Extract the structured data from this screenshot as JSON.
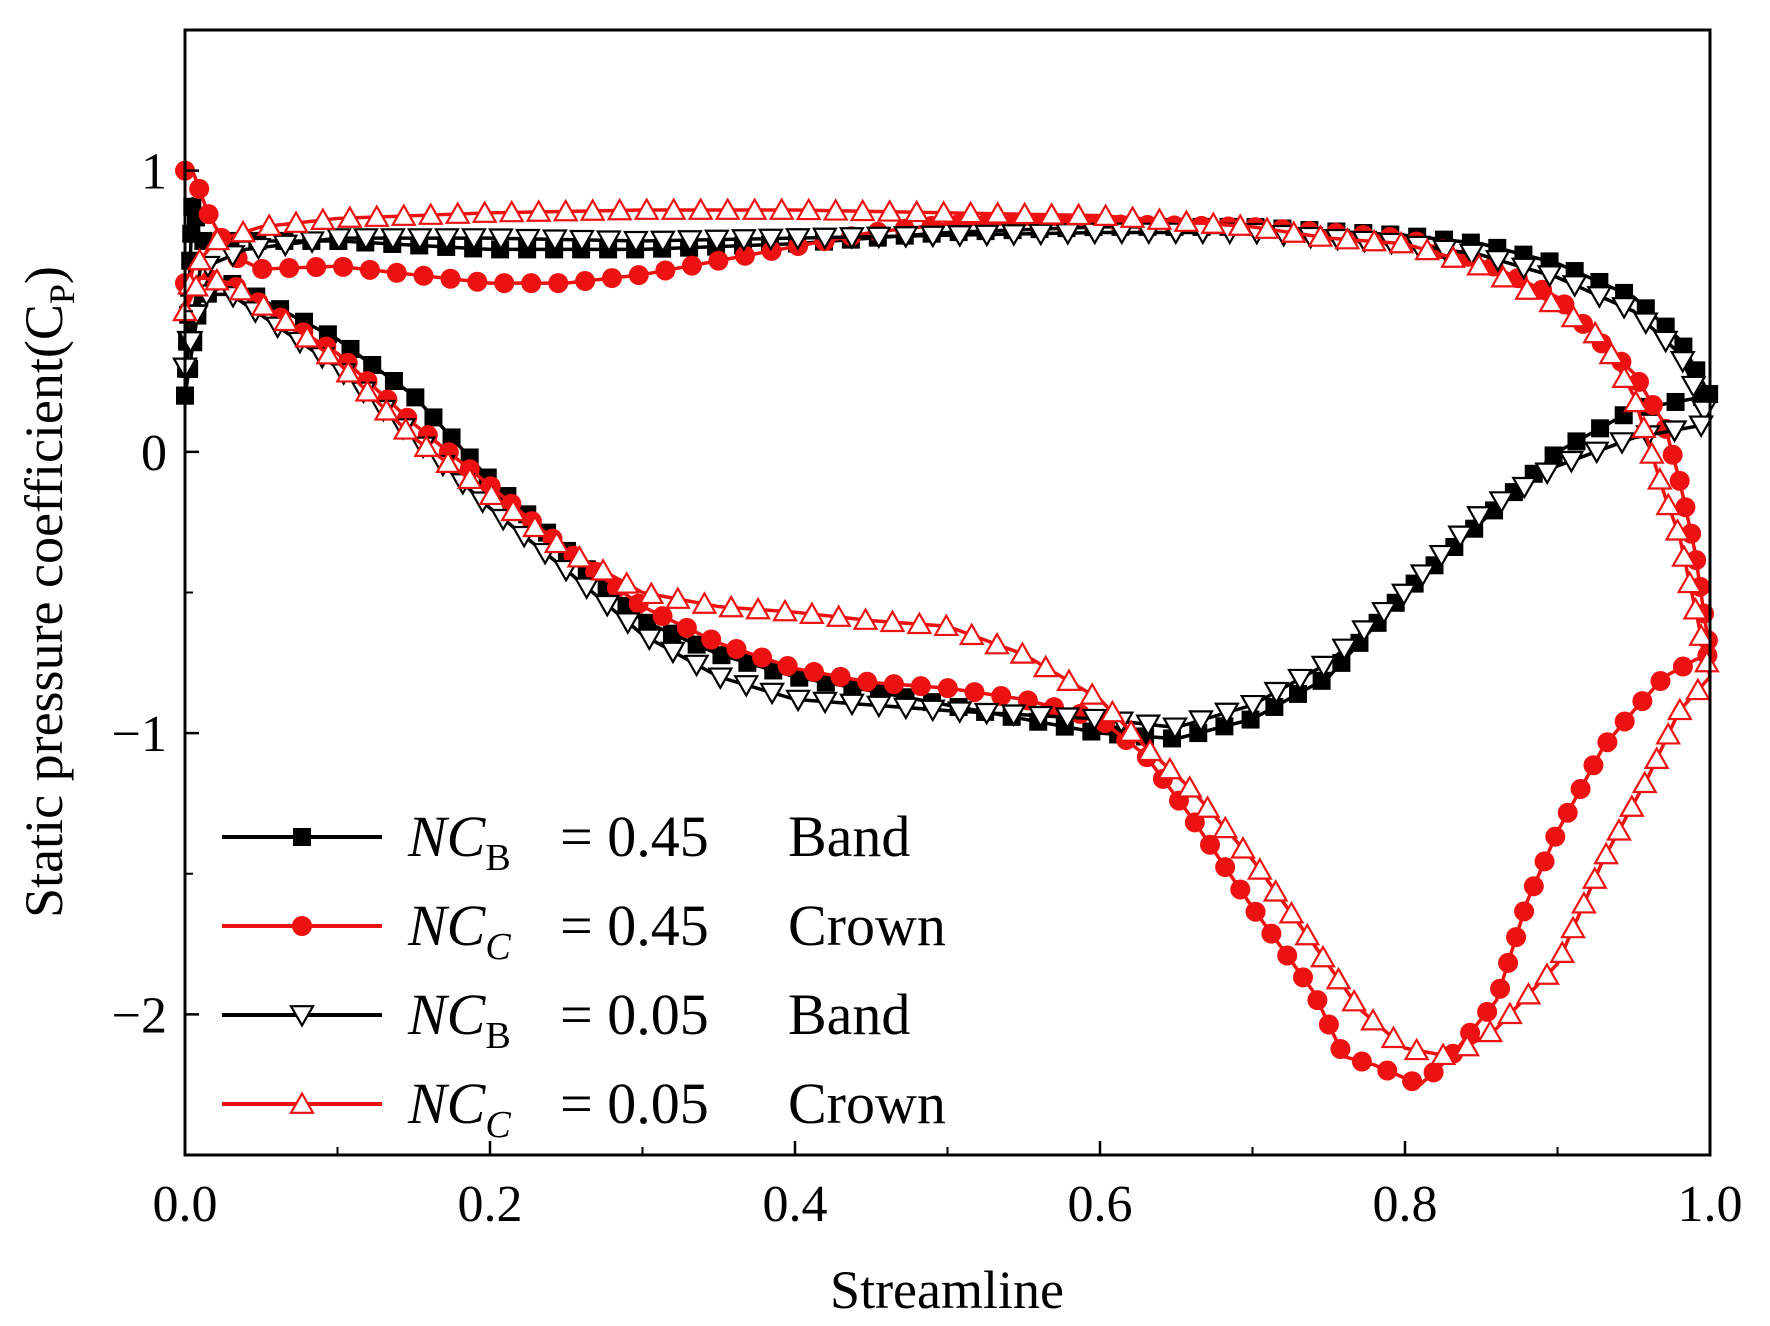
{
  "chart_data": {
    "type": "line",
    "xlabel": "Streamline",
    "ylabel": "Static pressure coefficient(C",
    "ylabel_sub": "P",
    "ylabel_close": ")",
    "xlim": [
      0.0,
      1.0
    ],
    "ylim": [
      -2.5,
      1.5
    ],
    "xticks": [
      0.0,
      0.2,
      0.4,
      0.6,
      0.8,
      1.0
    ],
    "xtick_labels": [
      "0.0",
      "0.2",
      "0.4",
      "0.6",
      "0.8",
      "1.0"
    ],
    "yticks": [
      -2,
      -1,
      0,
      1
    ],
    "ytick_labels": [
      "−2",
      "−1",
      "0",
      "1"
    ],
    "legend_position": "bottom-left",
    "series": [
      {
        "name": "NC_B = 0.45 Band",
        "label_italic": "NC",
        "label_sub": "B",
        "label_value": "= 0.45",
        "label_word": "Band",
        "color": "#000000",
        "marker": "square",
        "upper": [
          [
            0.0,
            0.2
          ],
          [
            0.005,
            0.9
          ],
          [
            0.01,
            0.75
          ],
          [
            0.05,
            0.75
          ],
          [
            0.1,
            0.75
          ],
          [
            0.2,
            0.72
          ],
          [
            0.3,
            0.72
          ],
          [
            0.4,
            0.74
          ],
          [
            0.5,
            0.78
          ],
          [
            0.6,
            0.8
          ],
          [
            0.7,
            0.8
          ],
          [
            0.8,
            0.77
          ],
          [
            0.85,
            0.74
          ],
          [
            0.9,
            0.67
          ],
          [
            0.95,
            0.55
          ],
          [
            0.98,
            0.4
          ],
          [
            1.0,
            0.2
          ]
        ],
        "lower": [
          [
            0.0,
            0.2
          ],
          [
            0.01,
            0.55
          ],
          [
            0.03,
            0.6
          ],
          [
            0.1,
            0.4
          ],
          [
            0.15,
            0.2
          ],
          [
            0.2,
            -0.1
          ],
          [
            0.25,
            -0.35
          ],
          [
            0.3,
            -0.6
          ],
          [
            0.35,
            -0.72
          ],
          [
            0.4,
            -0.8
          ],
          [
            0.5,
            -0.9
          ],
          [
            0.6,
            -1.0
          ],
          [
            0.65,
            -1.02
          ],
          [
            0.7,
            -0.95
          ],
          [
            0.75,
            -0.8
          ],
          [
            0.8,
            -0.5
          ],
          [
            0.85,
            -0.25
          ],
          [
            0.9,
            0.0
          ],
          [
            0.95,
            0.15
          ],
          [
            1.0,
            0.2
          ]
        ]
      },
      {
        "name": "NC_C = 0.45 Crown",
        "label_italic": "NC",
        "label_sub": "C",
        "label_value": "= 0.45",
        "label_word": "Crown",
        "color": "#ee1111",
        "marker": "circle",
        "upper": [
          [
            0.0,
            1.0
          ],
          [
            0.005,
            1.0
          ],
          [
            0.015,
            0.85
          ],
          [
            0.03,
            0.7
          ],
          [
            0.05,
            0.65
          ],
          [
            0.1,
            0.66
          ],
          [
            0.15,
            0.63
          ],
          [
            0.2,
            0.6
          ],
          [
            0.25,
            0.6
          ],
          [
            0.3,
            0.63
          ],
          [
            0.35,
            0.68
          ],
          [
            0.4,
            0.73
          ],
          [
            0.45,
            0.78
          ],
          [
            0.5,
            0.81
          ],
          [
            0.6,
            0.81
          ],
          [
            0.7,
            0.8
          ],
          [
            0.8,
            0.76
          ],
          [
            0.85,
            0.68
          ],
          [
            0.9,
            0.55
          ],
          [
            0.93,
            0.38
          ],
          [
            0.95,
            0.28
          ],
          [
            0.97,
            0.1
          ],
          [
            0.98,
            -0.1
          ],
          [
            0.99,
            -0.35
          ],
          [
            1.0,
            -0.72
          ]
        ],
        "lower": [
          [
            0.0,
            0.6
          ],
          [
            0.01,
            0.62
          ],
          [
            0.03,
            0.6
          ],
          [
            0.07,
            0.45
          ],
          [
            0.1,
            0.35
          ],
          [
            0.15,
            0.1
          ],
          [
            0.2,
            -0.12
          ],
          [
            0.25,
            -0.35
          ],
          [
            0.3,
            -0.55
          ],
          [
            0.35,
            -0.68
          ],
          [
            0.4,
            -0.77
          ],
          [
            0.45,
            -0.82
          ],
          [
            0.5,
            -0.84
          ],
          [
            0.55,
            -0.88
          ],
          [
            0.6,
            -0.95
          ],
          [
            0.63,
            -1.08
          ],
          [
            0.66,
            -1.3
          ],
          [
            0.7,
            -1.62
          ],
          [
            0.74,
            -1.92
          ],
          [
            0.76,
            -2.15
          ],
          [
            0.78,
            -2.18
          ],
          [
            0.81,
            -2.25
          ],
          [
            0.83,
            -2.15
          ],
          [
            0.86,
            -1.95
          ],
          [
            0.88,
            -1.6
          ],
          [
            0.9,
            -1.35
          ],
          [
            0.93,
            -1.05
          ],
          [
            0.95,
            -0.92
          ],
          [
            0.97,
            -0.8
          ],
          [
            0.99,
            -0.74
          ],
          [
            1.0,
            -0.72
          ]
        ]
      },
      {
        "name": "NC_B = 0.05 Band",
        "label_italic": "NC",
        "label_sub": "B",
        "label_value": "= 0.05",
        "label_word": "Band",
        "color": "#000000",
        "marker": "triangle-down",
        "upper": [
          [
            0.0,
            0.3
          ],
          [
            0.01,
            0.65
          ],
          [
            0.04,
            0.72
          ],
          [
            0.1,
            0.76
          ],
          [
            0.2,
            0.76
          ],
          [
            0.3,
            0.75
          ],
          [
            0.4,
            0.76
          ],
          [
            0.5,
            0.77
          ],
          [
            0.6,
            0.78
          ],
          [
            0.7,
            0.78
          ],
          [
            0.8,
            0.74
          ],
          [
            0.85,
            0.7
          ],
          [
            0.9,
            0.62
          ],
          [
            0.95,
            0.5
          ],
          [
            0.98,
            0.35
          ],
          [
            1.0,
            0.1
          ]
        ],
        "lower": [
          [
            0.0,
            0.3
          ],
          [
            0.01,
            0.56
          ],
          [
            0.03,
            0.56
          ],
          [
            0.1,
            0.3
          ],
          [
            0.15,
            0.05
          ],
          [
            0.2,
            -0.2
          ],
          [
            0.25,
            -0.42
          ],
          [
            0.3,
            -0.65
          ],
          [
            0.35,
            -0.8
          ],
          [
            0.4,
            -0.88
          ],
          [
            0.5,
            -0.92
          ],
          [
            0.6,
            -0.95
          ],
          [
            0.65,
            -0.98
          ],
          [
            0.7,
            -0.9
          ],
          [
            0.75,
            -0.75
          ],
          [
            0.8,
            -0.5
          ],
          [
            0.85,
            -0.22
          ],
          [
            0.9,
            -0.05
          ],
          [
            0.95,
            0.05
          ],
          [
            1.0,
            0.1
          ]
        ]
      },
      {
        "name": "NC_C = 0.05 Crown",
        "label_italic": "NC",
        "label_sub": "C",
        "label_value": "= 0.05",
        "label_word": "Crown",
        "color": "#ee1111",
        "marker": "triangle-up",
        "upper": [
          [
            0.0,
            0.5
          ],
          [
            0.005,
            0.65
          ],
          [
            0.02,
            0.75
          ],
          [
            0.05,
            0.8
          ],
          [
            0.1,
            0.83
          ],
          [
            0.2,
            0.85
          ],
          [
            0.3,
            0.86
          ],
          [
            0.4,
            0.86
          ],
          [
            0.5,
            0.85
          ],
          [
            0.6,
            0.84
          ],
          [
            0.7,
            0.8
          ],
          [
            0.75,
            0.76
          ],
          [
            0.8,
            0.74
          ],
          [
            0.85,
            0.66
          ],
          [
            0.9,
            0.52
          ],
          [
            0.93,
            0.4
          ],
          [
            0.95,
            0.2
          ],
          [
            0.97,
            -0.15
          ],
          [
            0.98,
            -0.3
          ],
          [
            0.99,
            -0.55
          ],
          [
            1.0,
            -0.8
          ]
        ],
        "lower": [
          [
            0.0,
            0.5
          ],
          [
            0.01,
            0.62
          ],
          [
            0.03,
            0.6
          ],
          [
            0.07,
            0.45
          ],
          [
            0.1,
            0.32
          ],
          [
            0.15,
            0.05
          ],
          [
            0.2,
            -0.15
          ],
          [
            0.25,
            -0.35
          ],
          [
            0.3,
            -0.5
          ],
          [
            0.35,
            -0.55
          ],
          [
            0.4,
            -0.57
          ],
          [
            0.45,
            -0.6
          ],
          [
            0.5,
            -0.62
          ],
          [
            0.55,
            -0.72
          ],
          [
            0.6,
            -0.88
          ],
          [
            0.63,
            -1.05
          ],
          [
            0.66,
            -1.2
          ],
          [
            0.7,
            -1.45
          ],
          [
            0.74,
            -1.75
          ],
          [
            0.77,
            -1.98
          ],
          [
            0.8,
            -2.12
          ],
          [
            0.83,
            -2.15
          ],
          [
            0.86,
            -2.05
          ],
          [
            0.9,
            -1.82
          ],
          [
            0.93,
            -1.45
          ],
          [
            0.96,
            -1.15
          ],
          [
            0.98,
            -0.92
          ],
          [
            1.0,
            -0.8
          ]
        ]
      }
    ]
  }
}
